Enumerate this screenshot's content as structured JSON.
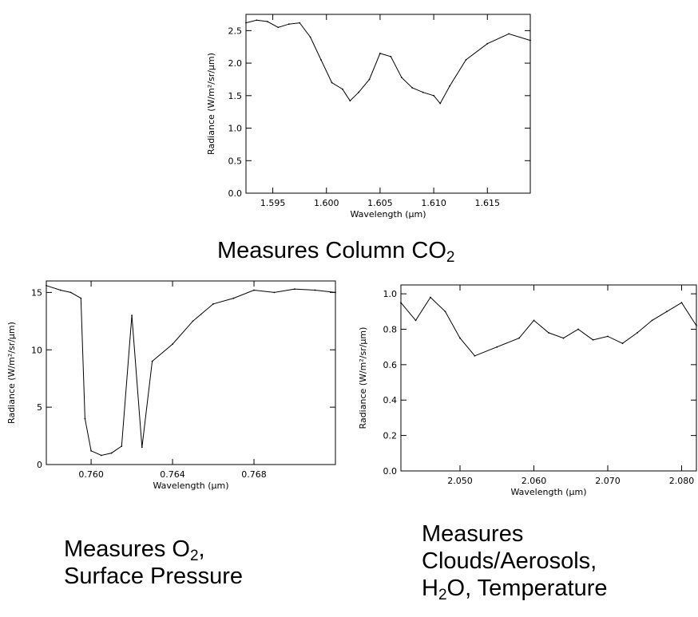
{
  "captions": {
    "top": {
      "pre": "Measures Column CO",
      "sub": "2",
      "post": ""
    },
    "left": {
      "line1": {
        "pre": "Measures O",
        "sub": "2",
        "post": ","
      },
      "line2": "Surface Pressure"
    },
    "right": {
      "line1": "Measures",
      "line2": "Clouds/Aerosols,",
      "line3": {
        "pre": "H",
        "sub": "2",
        "post": "O, Temperature"
      }
    }
  },
  "chart_data": [
    {
      "id": "co2",
      "type": "line",
      "title": "",
      "xlabel": "Wavelength (μm)",
      "ylabel": "Radiance (W/m²/sr/μm)",
      "xlim": [
        1.5925,
        1.619
      ],
      "ylim": [
        0.0,
        2.75
      ],
      "xticks": [
        1.595,
        1.6,
        1.605,
        1.61,
        1.615
      ],
      "xticklabels": [
        "1.595",
        "1.600",
        "1.605",
        "1.610",
        "1.615"
      ],
      "yticks": [
        0.0,
        0.5,
        1.0,
        1.5,
        2.0,
        2.5
      ],
      "yticklabels": [
        "0.0",
        "0.5",
        "1.0",
        "1.5",
        "2.0",
        "2.5"
      ],
      "grid": false,
      "series": [
        {
          "x": [
            1.5925,
            1.5935,
            1.5945,
            1.5955,
            1.5965,
            1.5975,
            1.5985,
            1.5995,
            1.6005,
            1.6015,
            1.6022,
            1.603,
            1.604,
            1.605,
            1.606,
            1.607,
            1.608,
            1.609,
            1.61,
            1.6106,
            1.6115,
            1.613,
            1.615,
            1.617,
            1.619
          ],
          "y": [
            2.62,
            2.66,
            2.64,
            2.55,
            2.6,
            2.62,
            2.4,
            2.05,
            1.7,
            1.6,
            1.42,
            1.55,
            1.75,
            2.15,
            2.1,
            1.78,
            1.62,
            1.55,
            1.5,
            1.38,
            1.65,
            2.05,
            2.3,
            2.45,
            2.35
          ]
        }
      ]
    },
    {
      "id": "o2",
      "type": "line",
      "title": "",
      "xlabel": "Wavelength (μm)",
      "ylabel": "Radiance (W/m²/sr/μm)",
      "xlim": [
        0.7578,
        0.772
      ],
      "ylim": [
        0,
        16
      ],
      "xticks": [
        0.76,
        0.764,
        0.768
      ],
      "xticklabels": [
        "0.760",
        "0.764",
        "0.768"
      ],
      "yticks": [
        0,
        5,
        10,
        15
      ],
      "yticklabels": [
        "0",
        "5",
        "10",
        "15"
      ],
      "grid": false,
      "series": [
        {
          "x": [
            0.7578,
            0.7585,
            0.759,
            0.7595,
            0.7597,
            0.76,
            0.7605,
            0.761,
            0.7615,
            0.762,
            0.7625,
            0.763,
            0.764,
            0.765,
            0.766,
            0.767,
            0.768,
            0.769,
            0.77,
            0.771,
            0.772
          ],
          "y": [
            15.6,
            15.2,
            15.0,
            14.5,
            4.0,
            1.2,
            0.8,
            1.0,
            1.6,
            13.0,
            1.5,
            9.0,
            10.5,
            12.5,
            14.0,
            14.5,
            15.2,
            15.0,
            15.3,
            15.2,
            15.0
          ]
        }
      ]
    },
    {
      "id": "h2o",
      "type": "line",
      "title": "",
      "xlabel": "Wavelength (μm)",
      "ylabel": "Radiance (W/m²/sr/μm)",
      "xlim": [
        2.042,
        2.082
      ],
      "ylim": [
        0.0,
        1.05
      ],
      "xticks": [
        2.05,
        2.06,
        2.07,
        2.08
      ],
      "xticklabels": [
        "2.050",
        "2.060",
        "2.070",
        "2.080"
      ],
      "yticks": [
        0.0,
        0.2,
        0.4,
        0.6,
        0.8,
        1.0
      ],
      "yticklabels": [
        "0.0",
        "0.2",
        "0.4",
        "0.6",
        "0.8",
        "1.0"
      ],
      "grid": false,
      "series": [
        {
          "x": [
            2.042,
            2.044,
            2.046,
            2.048,
            2.05,
            2.052,
            2.055,
            2.058,
            2.06,
            2.062,
            2.064,
            2.066,
            2.068,
            2.07,
            2.072,
            2.074,
            2.076,
            2.078,
            2.08,
            2.082
          ],
          "y": [
            0.95,
            0.85,
            0.98,
            0.9,
            0.75,
            0.65,
            0.7,
            0.75,
            0.85,
            0.78,
            0.75,
            0.8,
            0.74,
            0.76,
            0.72,
            0.78,
            0.85,
            0.9,
            0.95,
            0.82
          ]
        }
      ]
    }
  ]
}
